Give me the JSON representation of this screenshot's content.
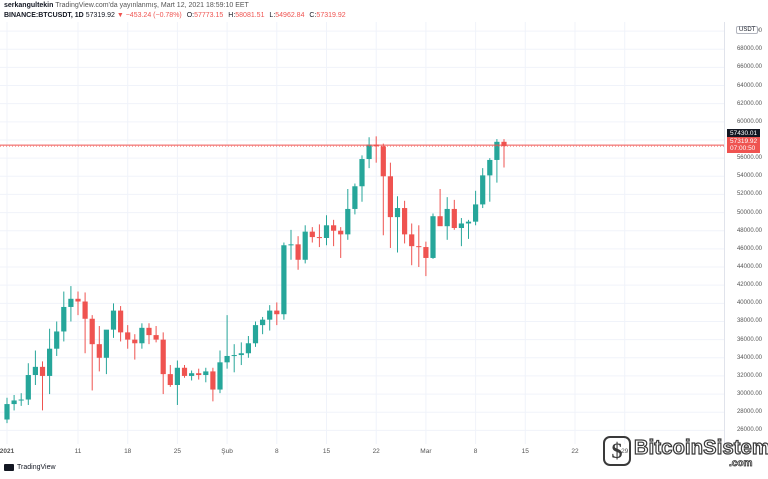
{
  "header": {
    "author": "serkangultekin",
    "published": "TradingView.com'da yayınlanmış, Mart 12, 2021 18:59:10 EET",
    "symbol": "BINANCE:BTCUSDT, 1D",
    "last": "57319.92",
    "change": "▼ −453.24 (−0.78%)",
    "o_label": "O:",
    "o_value": "57773.15",
    "h_label": "H:",
    "h_value": "58081.51",
    "l_label": "L:",
    "l_value": "54962.84",
    "c_label": "C:",
    "c_value": "57319.92"
  },
  "currency_label": "USDT",
  "price_tags": {
    "high_line": "57430.01",
    "last": "57319.92",
    "countdown": "07:00:50"
  },
  "footer": {
    "tradingview": "TradingView"
  },
  "watermark": {
    "name": "BitcoinSistemi",
    "suffix": ".com",
    "icon": "bitcoin-s-icon"
  },
  "colors": {
    "up": "#26a69a",
    "down": "#ef5350",
    "hline": "#ef5350",
    "grid": "#f0f3fa"
  },
  "chart_data": {
    "type": "candlestick",
    "ylim": [
      24500,
      71000
    ],
    "y_ticks": [
      26000,
      28000,
      30000,
      32000,
      34000,
      36000,
      38000,
      40000,
      42000,
      44000,
      46000,
      48000,
      50000,
      52000,
      54000,
      56000,
      58000,
      60000,
      62000,
      64000,
      66000,
      68000,
      70000
    ],
    "y_tick_labels": [
      "26000.00",
      "28000.00",
      "30000.00",
      "32000.00",
      "34000.00",
      "36000.00",
      "38000.00",
      "40000.00",
      "42000.00",
      "44000.00",
      "46000.00",
      "48000.00",
      "50000.00",
      "52000.00",
      "54000.00",
      "56000.00",
      "58000.00",
      "60000.00",
      "62000.00",
      "64000.00",
      "66000.00",
      "68000.00",
      "70000.00"
    ],
    "x_tick_labels": [
      {
        "day": 0,
        "label": "2021"
      },
      {
        "day": 10,
        "label": "11"
      },
      {
        "day": 17,
        "label": "18"
      },
      {
        "day": 24,
        "label": "25"
      },
      {
        "day": 31,
        "label": "Şub"
      },
      {
        "day": 38,
        "label": "8"
      },
      {
        "day": 45,
        "label": "15"
      },
      {
        "day": 52,
        "label": "22"
      },
      {
        "day": 59,
        "label": "Mar"
      },
      {
        "day": 66,
        "label": "8"
      },
      {
        "day": 73,
        "label": "15"
      },
      {
        "day": 80,
        "label": "22"
      },
      {
        "day": 87,
        "label": "29"
      }
    ],
    "horizontal_line": 57430.01,
    "candles": [
      {
        "o": 27200,
        "h": 29600,
        "l": 26800,
        "c": 28900
      },
      {
        "o": 28900,
        "h": 29900,
        "l": 28200,
        "c": 29300
      },
      {
        "o": 29300,
        "h": 30100,
        "l": 28700,
        "c": 29400
      },
      {
        "o": 29400,
        "h": 33400,
        "l": 28800,
        "c": 32100
      },
      {
        "o": 32100,
        "h": 34800,
        "l": 31000,
        "c": 33000
      },
      {
        "o": 33000,
        "h": 33600,
        "l": 28200,
        "c": 32000
      },
      {
        "o": 32000,
        "h": 37200,
        "l": 30000,
        "c": 35000
      },
      {
        "o": 35000,
        "h": 38000,
        "l": 34200,
        "c": 36900
      },
      {
        "o": 36900,
        "h": 41300,
        "l": 35800,
        "c": 39600
      },
      {
        "o": 39600,
        "h": 41900,
        "l": 38000,
        "c": 40500
      },
      {
        "o": 40500,
        "h": 41300,
        "l": 38700,
        "c": 40200
      },
      {
        "o": 40200,
        "h": 41200,
        "l": 34500,
        "c": 38300
      },
      {
        "o": 38300,
        "h": 38700,
        "l": 30400,
        "c": 35500
      },
      {
        "o": 35500,
        "h": 37500,
        "l": 32500,
        "c": 34000
      },
      {
        "o": 34000,
        "h": 37000,
        "l": 32200,
        "c": 37100
      },
      {
        "o": 37100,
        "h": 40000,
        "l": 36200,
        "c": 39200
      },
      {
        "o": 39200,
        "h": 39700,
        "l": 35800,
        "c": 36800
      },
      {
        "o": 36800,
        "h": 37600,
        "l": 35000,
        "c": 36000
      },
      {
        "o": 36000,
        "h": 36600,
        "l": 33800,
        "c": 35600
      },
      {
        "o": 35600,
        "h": 37800,
        "l": 35000,
        "c": 37300
      },
      {
        "o": 37300,
        "h": 37800,
        "l": 35500,
        "c": 36500
      },
      {
        "o": 36500,
        "h": 37500,
        "l": 35700,
        "c": 36000
      },
      {
        "o": 36000,
        "h": 36800,
        "l": 30000,
        "c": 32200
      },
      {
        "o": 32200,
        "h": 33200,
        "l": 30800,
        "c": 31000
      },
      {
        "o": 31000,
        "h": 33700,
        "l": 28800,
        "c": 32900
      },
      {
        "o": 32900,
        "h": 33200,
        "l": 31800,
        "c": 32000
      },
      {
        "o": 32000,
        "h": 32600,
        "l": 31500,
        "c": 32300
      },
      {
        "o": 32300,
        "h": 32800,
        "l": 31600,
        "c": 32100
      },
      {
        "o": 32100,
        "h": 32900,
        "l": 31300,
        "c": 32500
      },
      {
        "o": 32500,
        "h": 32900,
        "l": 29200,
        "c": 30500
      },
      {
        "o": 30500,
        "h": 34800,
        "l": 30100,
        "c": 33500
      },
      {
        "o": 33500,
        "h": 38700,
        "l": 32800,
        "c": 34200
      },
      {
        "o": 34200,
        "h": 35500,
        "l": 32400,
        "c": 34300
      },
      {
        "o": 34300,
        "h": 35700,
        "l": 33200,
        "c": 34500
      },
      {
        "o": 34500,
        "h": 36400,
        "l": 34000,
        "c": 35600
      },
      {
        "o": 35600,
        "h": 38000,
        "l": 35200,
        "c": 37600
      },
      {
        "o": 37600,
        "h": 38500,
        "l": 36600,
        "c": 38200
      },
      {
        "o": 38200,
        "h": 39800,
        "l": 37000,
        "c": 39200
      },
      {
        "o": 39200,
        "h": 40100,
        "l": 37600,
        "c": 38800
      },
      {
        "o": 38800,
        "h": 46700,
        "l": 38200,
        "c": 46400
      },
      {
        "o": 46400,
        "h": 48100,
        "l": 44800,
        "c": 46500
      },
      {
        "o": 46500,
        "h": 47400,
        "l": 43700,
        "c": 44800
      },
      {
        "o": 44800,
        "h": 48600,
        "l": 44400,
        "c": 47900
      },
      {
        "o": 47900,
        "h": 48400,
        "l": 46700,
        "c": 47300
      },
      {
        "o": 47300,
        "h": 48700,
        "l": 46200,
        "c": 47200
      },
      {
        "o": 47200,
        "h": 49700,
        "l": 46400,
        "c": 48600
      },
      {
        "o": 48600,
        "h": 49200,
        "l": 46300,
        "c": 48000
      },
      {
        "o": 48000,
        "h": 48400,
        "l": 45000,
        "c": 47600
      },
      {
        "o": 47600,
        "h": 52600,
        "l": 47000,
        "c": 50400
      },
      {
        "o": 50400,
        "h": 53200,
        "l": 49800,
        "c": 52900
      },
      {
        "o": 52900,
        "h": 56300,
        "l": 51200,
        "c": 55900
      },
      {
        "o": 55900,
        "h": 58300,
        "l": 54900,
        "c": 57500
      },
      {
        "o": 57500,
        "h": 58400,
        "l": 55500,
        "c": 57300
      },
      {
        "o": 57300,
        "h": 57600,
        "l": 47500,
        "c": 54000
      },
      {
        "o": 54000,
        "h": 55500,
        "l": 46100,
        "c": 49500
      },
      {
        "o": 49500,
        "h": 51800,
        "l": 45600,
        "c": 50500
      },
      {
        "o": 50500,
        "h": 51300,
        "l": 46600,
        "c": 47600
      },
      {
        "o": 47600,
        "h": 48800,
        "l": 44200,
        "c": 46300
      },
      {
        "o": 46300,
        "h": 48600,
        "l": 44000,
        "c": 46200
      },
      {
        "o": 46200,
        "h": 46800,
        "l": 43000,
        "c": 45000
      },
      {
        "o": 45000,
        "h": 49900,
        "l": 44900,
        "c": 49600
      },
      {
        "o": 49600,
        "h": 52600,
        "l": 48700,
        "c": 48500
      },
      {
        "o": 48500,
        "h": 51700,
        "l": 47000,
        "c": 50400
      },
      {
        "o": 50400,
        "h": 51400,
        "l": 48100,
        "c": 48300
      },
      {
        "o": 48300,
        "h": 49400,
        "l": 46300,
        "c": 48800
      },
      {
        "o": 48800,
        "h": 49200,
        "l": 47100,
        "c": 49000
      },
      {
        "o": 49000,
        "h": 52400,
        "l": 48600,
        "c": 50900
      },
      {
        "o": 50900,
        "h": 54900,
        "l": 50500,
        "c": 54100
      },
      {
        "o": 54100,
        "h": 56000,
        "l": 51200,
        "c": 55800
      },
      {
        "o": 55800,
        "h": 58100,
        "l": 53300,
        "c": 57800
      },
      {
        "o": 57800,
        "h": 58100,
        "l": 54962.84,
        "c": 57319.92
      }
    ]
  }
}
